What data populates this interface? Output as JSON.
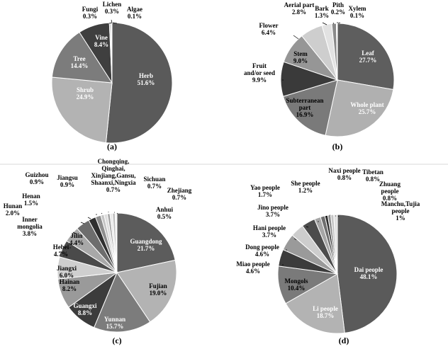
{
  "chart_data": [
    {
      "type": "pie",
      "caption": "(a)",
      "slices": [
        {
          "label": "Herb",
          "value": 51.6,
          "percent_text": "51.6%",
          "color": "#5a5a5a",
          "text_color": "#ffffff"
        },
        {
          "label": "Shrub",
          "value": 24.9,
          "percent_text": "24.9%",
          "color": "#b3b3b3",
          "text_color": "#ffffff"
        },
        {
          "label": "Tree",
          "value": 14.4,
          "percent_text": "14.4%",
          "color": "#7c7c7c",
          "text_color": "#ffffff"
        },
        {
          "label": "Vine",
          "value": 8.4,
          "percent_text": "8.4%",
          "color": "#3f3f3f",
          "text_color": "#ffffff"
        },
        {
          "label": "Fungi",
          "value": 0.3,
          "percent_text": "0.3%",
          "color": "#9a9a9a",
          "text_color": "#000000"
        },
        {
          "label": "Lichen",
          "value": 0.3,
          "percent_text": "0.3%",
          "color": "#d0d0d0",
          "text_color": "#000000"
        },
        {
          "label": "Algae",
          "value": 0.1,
          "percent_text": "0.1%",
          "color": "#e6e6e6",
          "text_color": "#000000"
        }
      ]
    },
    {
      "type": "pie",
      "caption": "(b)",
      "slices": [
        {
          "label": "Leaf",
          "value": 27.7,
          "percent_text": "27.7%",
          "color": "#5e5e5e",
          "text_color": "#ffffff"
        },
        {
          "label": "Whole plant",
          "value": 25.7,
          "percent_text": "25.7%",
          "color": "#b0b0b0",
          "text_color": "#ffffff"
        },
        {
          "label": "Subterranean part",
          "value": 16.9,
          "percent_text": "16.9%",
          "color": "#7a7a7a",
          "text_color": "#000000"
        },
        {
          "label": "Fruit and/or seed",
          "value": 9.9,
          "percent_text": "9.9%",
          "color": "#3a3a3a",
          "text_color": "#000000"
        },
        {
          "label": "Stem",
          "value": 9.0,
          "percent_text": "9.0%",
          "color": "#969696",
          "text_color": "#000000"
        },
        {
          "label": "Flower",
          "value": 6.4,
          "percent_text": "6.4%",
          "color": "#cecece",
          "text_color": "#000000"
        },
        {
          "label": "Aerial part",
          "value": 2.8,
          "percent_text": "2.8%",
          "color": "#e2e2e2",
          "text_color": "#000000"
        },
        {
          "label": "Bark",
          "value": 1.3,
          "percent_text": "1.3%",
          "color": "#8a8a8a",
          "text_color": "#000000"
        },
        {
          "label": "Pith",
          "value": 0.2,
          "percent_text": "0.2%",
          "color": "#c6c6c6",
          "text_color": "#000000"
        },
        {
          "label": "Xylem",
          "value": 0.1,
          "percent_text": "0.1%",
          "color": "#efefef",
          "text_color": "#000000"
        }
      ]
    },
    {
      "type": "pie",
      "caption": "(c)",
      "slices": [
        {
          "label": "Guangdong",
          "value": 21.7,
          "percent_text": "21.7%",
          "color": "#5c5c5c",
          "text_color": "#ffffff"
        },
        {
          "label": "Fujian",
          "value": 19.0,
          "percent_text": "19.0%",
          "color": "#b3b3b3",
          "text_color": "#000000"
        },
        {
          "label": "Yunnan",
          "value": 15.7,
          "percent_text": "15.7%",
          "color": "#7c7c7c",
          "text_color": "#ffffff"
        },
        {
          "label": "Guangxi",
          "value": 8.8,
          "percent_text": "8.8%",
          "color": "#3c3c3c",
          "text_color": "#ffffff"
        },
        {
          "label": "Hainan",
          "value": 8.2,
          "percent_text": "8.2%",
          "color": "#9a9a9a",
          "text_color": "#000000"
        },
        {
          "label": "Jiangxi",
          "value": 6.0,
          "percent_text": "6.0%",
          "color": "#cfcfcf",
          "text_color": "#000000"
        },
        {
          "label": "Hebei",
          "value": 4.7,
          "percent_text": "4.7%",
          "color": "#4a4a4a",
          "text_color": "#000000"
        },
        {
          "label": "Jilin",
          "value": 4.4,
          "percent_text": "4.4%",
          "color": "#a8a8a8",
          "text_color": "#000000"
        },
        {
          "label": "Inner mongolia",
          "value": 3.8,
          "percent_text": "3.8%",
          "color": "#6d6d6d",
          "text_color": "#000000"
        },
        {
          "label": "Hunan",
          "value": 2.0,
          "percent_text": "2.0%",
          "color": "#2f2f2f",
          "text_color": "#000000"
        },
        {
          "label": "Henan",
          "value": 1.5,
          "percent_text": "1.5%",
          "color": "#8e8e8e",
          "text_color": "#000000"
        },
        {
          "label": "Guizhou",
          "value": 0.9,
          "percent_text": "0.9%",
          "color": "#c4c4c4",
          "text_color": "#000000"
        },
        {
          "label": "Jiangsu",
          "value": 0.9,
          "percent_text": "0.9%",
          "color": "#dddddd",
          "text_color": "#000000"
        },
        {
          "label": "Chongqing, Qinghai, Xinjiang,Gansu, Shaanxi,Ningxia",
          "value": 0.7,
          "percent_text": "0.7%",
          "color": "#a0a0a0",
          "text_color": "#000000"
        },
        {
          "label": "Sichuan",
          "value": 0.7,
          "percent_text": "0.7%",
          "color": "#e8e8e8",
          "text_color": "#000000"
        },
        {
          "label": "Zhejiang",
          "value": 0.7,
          "percent_text": "0.7%",
          "color": "#bcbcbc",
          "text_color": "#000000"
        },
        {
          "label": "Anhui",
          "value": 0.5,
          "percent_text": "0.5%",
          "color": "#f0f0f0",
          "text_color": "#000000"
        }
      ]
    },
    {
      "type": "pie",
      "caption": "(d)",
      "slices": [
        {
          "label": "Dai people",
          "value": 48.1,
          "percent_text": "48.1%",
          "color": "#5a5a5a",
          "text_color": "#ffffff"
        },
        {
          "label": "Li people",
          "value": 18.7,
          "percent_text": "18.7%",
          "color": "#b3b3b3",
          "text_color": "#ffffff"
        },
        {
          "label": "Mongols",
          "value": 10.4,
          "percent_text": "10.4%",
          "color": "#7a7a7a",
          "text_color": "#000000"
        },
        {
          "label": "Miao people",
          "value": 4.6,
          "percent_text": "4.6%",
          "color": "#3c3c3c",
          "text_color": "#000000"
        },
        {
          "label": "Dong people",
          "value": 4.6,
          "percent_text": "4.6%",
          "color": "#9a9a9a",
          "text_color": "#000000"
        },
        {
          "label": "Hani people",
          "value": 3.7,
          "percent_text": "3.7%",
          "color": "#cdcdcd",
          "text_color": "#000000"
        },
        {
          "label": "Jino people",
          "value": 3.7,
          "percent_text": "3.7%",
          "color": "#4c4c4c",
          "text_color": "#000000"
        },
        {
          "label": "Yao people",
          "value": 1.7,
          "percent_text": "1.7%",
          "color": "#a6a6a6",
          "text_color": "#000000"
        },
        {
          "label": "She people",
          "value": 1.2,
          "percent_text": "1.2%",
          "color": "#6e6e6e",
          "text_color": "#000000"
        },
        {
          "label": "Naxi people",
          "value": 0.8,
          "percent_text": "0.8%",
          "color": "#2e2e2e",
          "text_color": "#000000"
        },
        {
          "label": "Tibetan",
          "value": 0.8,
          "percent_text": "0.8%",
          "color": "#8e8e8e",
          "text_color": "#000000"
        },
        {
          "label": "Zhuang people",
          "value": 0.8,
          "percent_text": "0.8%",
          "color": "#c4c4c4",
          "text_color": "#000000"
        },
        {
          "label": "Manchu,Tujia people",
          "value": 1,
          "percent_text": "1%",
          "color": "#e0e0e0",
          "text_color": "#000000"
        }
      ]
    }
  ]
}
